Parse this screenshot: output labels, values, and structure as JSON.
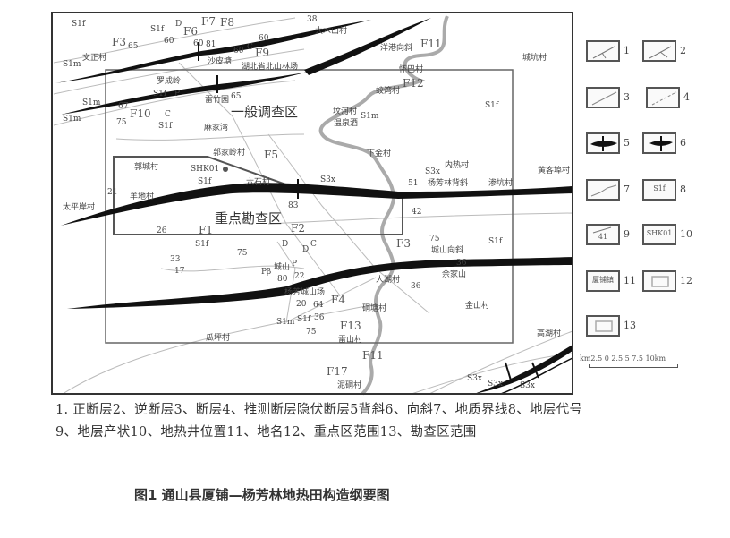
{
  "map": {
    "labels": [
      {
        "text": "文正村"
      },
      {
        "text": "沙皮塘"
      },
      {
        "text": "湖北省北山林场"
      },
      {
        "text": "罗成岭"
      },
      {
        "text": "雷竹园"
      },
      {
        "text": "麻家湾"
      },
      {
        "text": "郭家岭村"
      },
      {
        "text": "郭城村"
      },
      {
        "text": "SHK01"
      },
      {
        "text": "太平岸村"
      },
      {
        "text": "羊地村"
      },
      {
        "text": "六石村"
      },
      {
        "text": "大木山村"
      },
      {
        "text": "洋港向斜"
      },
      {
        "text": "怀巴村"
      },
      {
        "text": "城坑村"
      },
      {
        "text": "蛟湾村"
      },
      {
        "text": "坟河村"
      },
      {
        "text": "温泉酒"
      },
      {
        "text": "下金村"
      },
      {
        "text": "内热村"
      },
      {
        "text": "杨芳林背斜"
      },
      {
        "text": "渗坑村"
      },
      {
        "text": "黄客埠村"
      },
      {
        "text": "城山向斜"
      },
      {
        "text": "余家山"
      },
      {
        "text": "人湖村"
      },
      {
        "text": "杨芳城山场"
      },
      {
        "text": "城山"
      },
      {
        "text": "硐塘村"
      },
      {
        "text": "金山村"
      },
      {
        "text": "瓜坪村"
      },
      {
        "text": "雷山村"
      },
      {
        "text": "泥硐村"
      },
      {
        "text": "高湖村"
      }
    ],
    "zones": [
      {
        "text": "一般调查区"
      },
      {
        "text": "重点勘查区"
      }
    ],
    "symbols": [
      {
        "text": "F3"
      },
      {
        "text": "F6"
      },
      {
        "text": "F7"
      },
      {
        "text": "F8"
      },
      {
        "text": "F9"
      },
      {
        "text": "F10"
      },
      {
        "text": "F11"
      },
      {
        "text": "F12"
      },
      {
        "text": "F5"
      },
      {
        "text": "F1"
      },
      {
        "text": "F2"
      },
      {
        "text": "F3"
      },
      {
        "text": "F4"
      },
      {
        "text": "F13"
      },
      {
        "text": "F11"
      },
      {
        "text": "F17"
      },
      {
        "text": "S1f"
      },
      {
        "text": "S1m"
      },
      {
        "text": "S1m"
      },
      {
        "text": "S1f"
      },
      {
        "text": "S1m"
      },
      {
        "text": "S1f"
      },
      {
        "text": "S1f"
      },
      {
        "text": "S1f"
      },
      {
        "text": "S1f"
      },
      {
        "text": "S1m"
      },
      {
        "text": "S1f"
      },
      {
        "text": "S3x"
      },
      {
        "text": "S3x"
      },
      {
        "text": "S1f"
      },
      {
        "text": "S1m"
      },
      {
        "text": "S1f"
      },
      {
        "text": "D"
      },
      {
        "text": "C"
      },
      {
        "text": "C"
      },
      {
        "text": "P"
      },
      {
        "text": "D"
      },
      {
        "text": "C"
      },
      {
        "text": "P"
      },
      {
        "text": "D"
      },
      {
        "text": "Pβ"
      },
      {
        "text": "S3x"
      },
      {
        "text": "S3x"
      },
      {
        "text": "S3x"
      }
    ],
    "dips": [
      "60",
      "60",
      "81",
      "65",
      "60",
      "38",
      "60",
      "65",
      "67",
      "75",
      "83",
      "26",
      "21",
      "33",
      "17",
      "75",
      "51",
      "42",
      "75",
      "36",
      "36",
      "20",
      "64",
      "36",
      "75",
      "80",
      "22"
    ]
  },
  "legend": {
    "items": [
      {
        "num": "1",
        "icon": "normal-fault"
      },
      {
        "num": "2",
        "icon": "reverse-fault"
      },
      {
        "num": "3",
        "icon": "fault"
      },
      {
        "num": "4",
        "icon": "inferred-fault"
      },
      {
        "num": "5",
        "icon": "anticline"
      },
      {
        "num": "6",
        "icon": "syncline"
      },
      {
        "num": "7",
        "icon": "geologic-boundary"
      },
      {
        "num": "8",
        "icon": "stratum-code",
        "sample": "S1f"
      },
      {
        "num": "9",
        "icon": "stratum-attitude",
        "sample": "41"
      },
      {
        "num": "10",
        "icon": "geothermal-well",
        "sample": "SHK01"
      },
      {
        "num": "11",
        "icon": "place-name",
        "sample": "厦铺镇"
      },
      {
        "num": "12",
        "icon": "key-area-boundary"
      },
      {
        "num": "13",
        "icon": "survey-area-boundary"
      }
    ],
    "scale_label": "km2.5  0   2.5   5    7.5  10km"
  },
  "caption": {
    "line1": "1. 正断层2、逆断层3、断层4、推测断层隐伏断层5背斜6、向斜7、地质界线8、地层代号",
    "line2": "9、地层产状10、地热井位置11、地名12、重点区范围13、勘查区范围",
    "title": "图1 通山县厦铺—杨芳林地热田构造纲要图"
  }
}
